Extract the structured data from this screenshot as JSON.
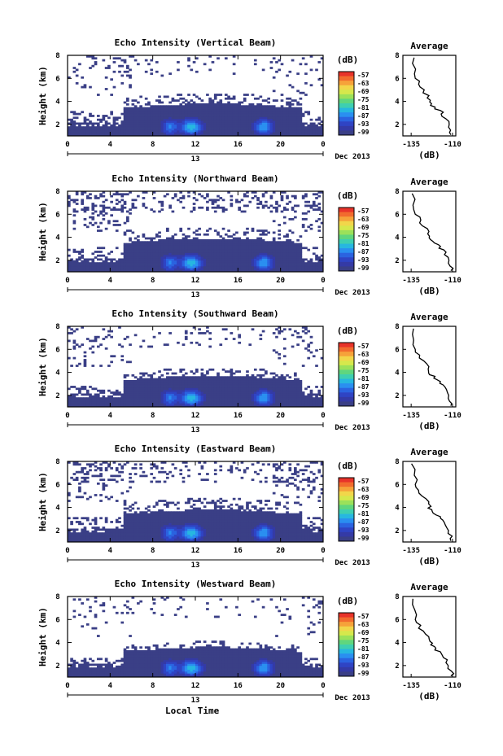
{
  "panels": [
    {
      "title": "Echo Intensity (Vertical Beam)",
      "noise": 0.12,
      "bandTop": 3.4,
      "extra": 0.9
    },
    {
      "title": "Echo Intensity (Northward Beam)",
      "noise": 0.35,
      "bandTop": 3.5,
      "extra": 1.0
    },
    {
      "title": "Echo Intensity (Southward Beam)",
      "noise": 0.18,
      "bandTop": 3.3,
      "extra": 0.7
    },
    {
      "title": "Echo Intensity (Eastward Beam)",
      "noise": 0.28,
      "bandTop": 3.4,
      "extra": 1.0
    },
    {
      "title": "Echo Intensity (Westward Beam)",
      "noise": 0.08,
      "bandTop": 3.2,
      "extra": 0.5
    }
  ],
  "ylabel": "Height (km)",
  "yticks": [
    "2",
    "4",
    "6",
    "8"
  ],
  "xticks": [
    "0",
    "4",
    "8",
    "12",
    "16",
    "20",
    "0"
  ],
  "date_day": "13",
  "date_label": "Dec 2013",
  "xlabel": "Local Time",
  "colorbar": {
    "unit": "(dB)",
    "labels": [
      "-57",
      "-63",
      "-69",
      "-75",
      "-81",
      "-87",
      "-93",
      "-99"
    ],
    "colors": [
      "#e8332a",
      "#f26b2e",
      "#f6a23a",
      "#f2d64a",
      "#d6e84c",
      "#9be15a",
      "#5fd67e",
      "#3ecfb1",
      "#27b7e0",
      "#2a8ff0",
      "#2b63e0",
      "#2f44c4",
      "#343aa6",
      "#3a3f86"
    ]
  },
  "avg": {
    "title": "Average",
    "xticks": [
      "-135",
      "-110"
    ],
    "yticks": [
      "2",
      "4",
      "6",
      "8"
    ],
    "xlabel": "(dB)"
  },
  "chart_data": [
    {
      "type": "heatmap",
      "title": "Echo Intensity (Vertical Beam)",
      "ylabel": "Height (km)",
      "xlabel": "Local Time",
      "xlim": [
        0,
        24
      ],
      "ylim": [
        1,
        8
      ],
      "zlabel": "(dB)",
      "zlim": [
        -99,
        -57
      ]
    },
    {
      "type": "heatmap",
      "title": "Echo Intensity (Northward Beam)",
      "ylabel": "Height (km)",
      "xlim": [
        0,
        24
      ],
      "ylim": [
        1,
        8
      ],
      "zlabel": "(dB)",
      "zlim": [
        -99,
        -57
      ]
    },
    {
      "type": "heatmap",
      "title": "Echo Intensity (Southward Beam)",
      "ylabel": "Height (km)",
      "xlim": [
        0,
        24
      ],
      "ylim": [
        1,
        8
      ],
      "zlabel": "(dB)",
      "zlim": [
        -99,
        -57
      ]
    },
    {
      "type": "heatmap",
      "title": "Echo Intensity (Eastward Beam)",
      "ylabel": "Height (km)",
      "xlim": [
        0,
        24
      ],
      "ylim": [
        1,
        8
      ],
      "zlabel": "(dB)",
      "zlim": [
        -99,
        -57
      ]
    },
    {
      "type": "heatmap",
      "title": "Echo Intensity (Westward Beam)",
      "ylabel": "Height (km)",
      "xlim": [
        0,
        24
      ],
      "ylim": [
        1,
        8
      ],
      "zlabel": "(dB)",
      "zlim": [
        -99,
        -57
      ]
    },
    {
      "type": "line",
      "title": "Average",
      "xlabel": "(dB)",
      "xlim": [
        -135,
        -110
      ],
      "ylim": [
        1,
        8
      ],
      "x": [
        -110,
        -111,
        -112,
        -114,
        -116,
        -118,
        -121,
        -123,
        -124,
        -125,
        -128,
        -130,
        -132,
        -133,
        -134
      ],
      "y": [
        1.1,
        1.5,
        2.0,
        2.5,
        2.9,
        3.2,
        3.5,
        3.8,
        4.1,
        4.5,
        5.0,
        5.5,
        6.0,
        6.8,
        7.8
      ]
    }
  ]
}
